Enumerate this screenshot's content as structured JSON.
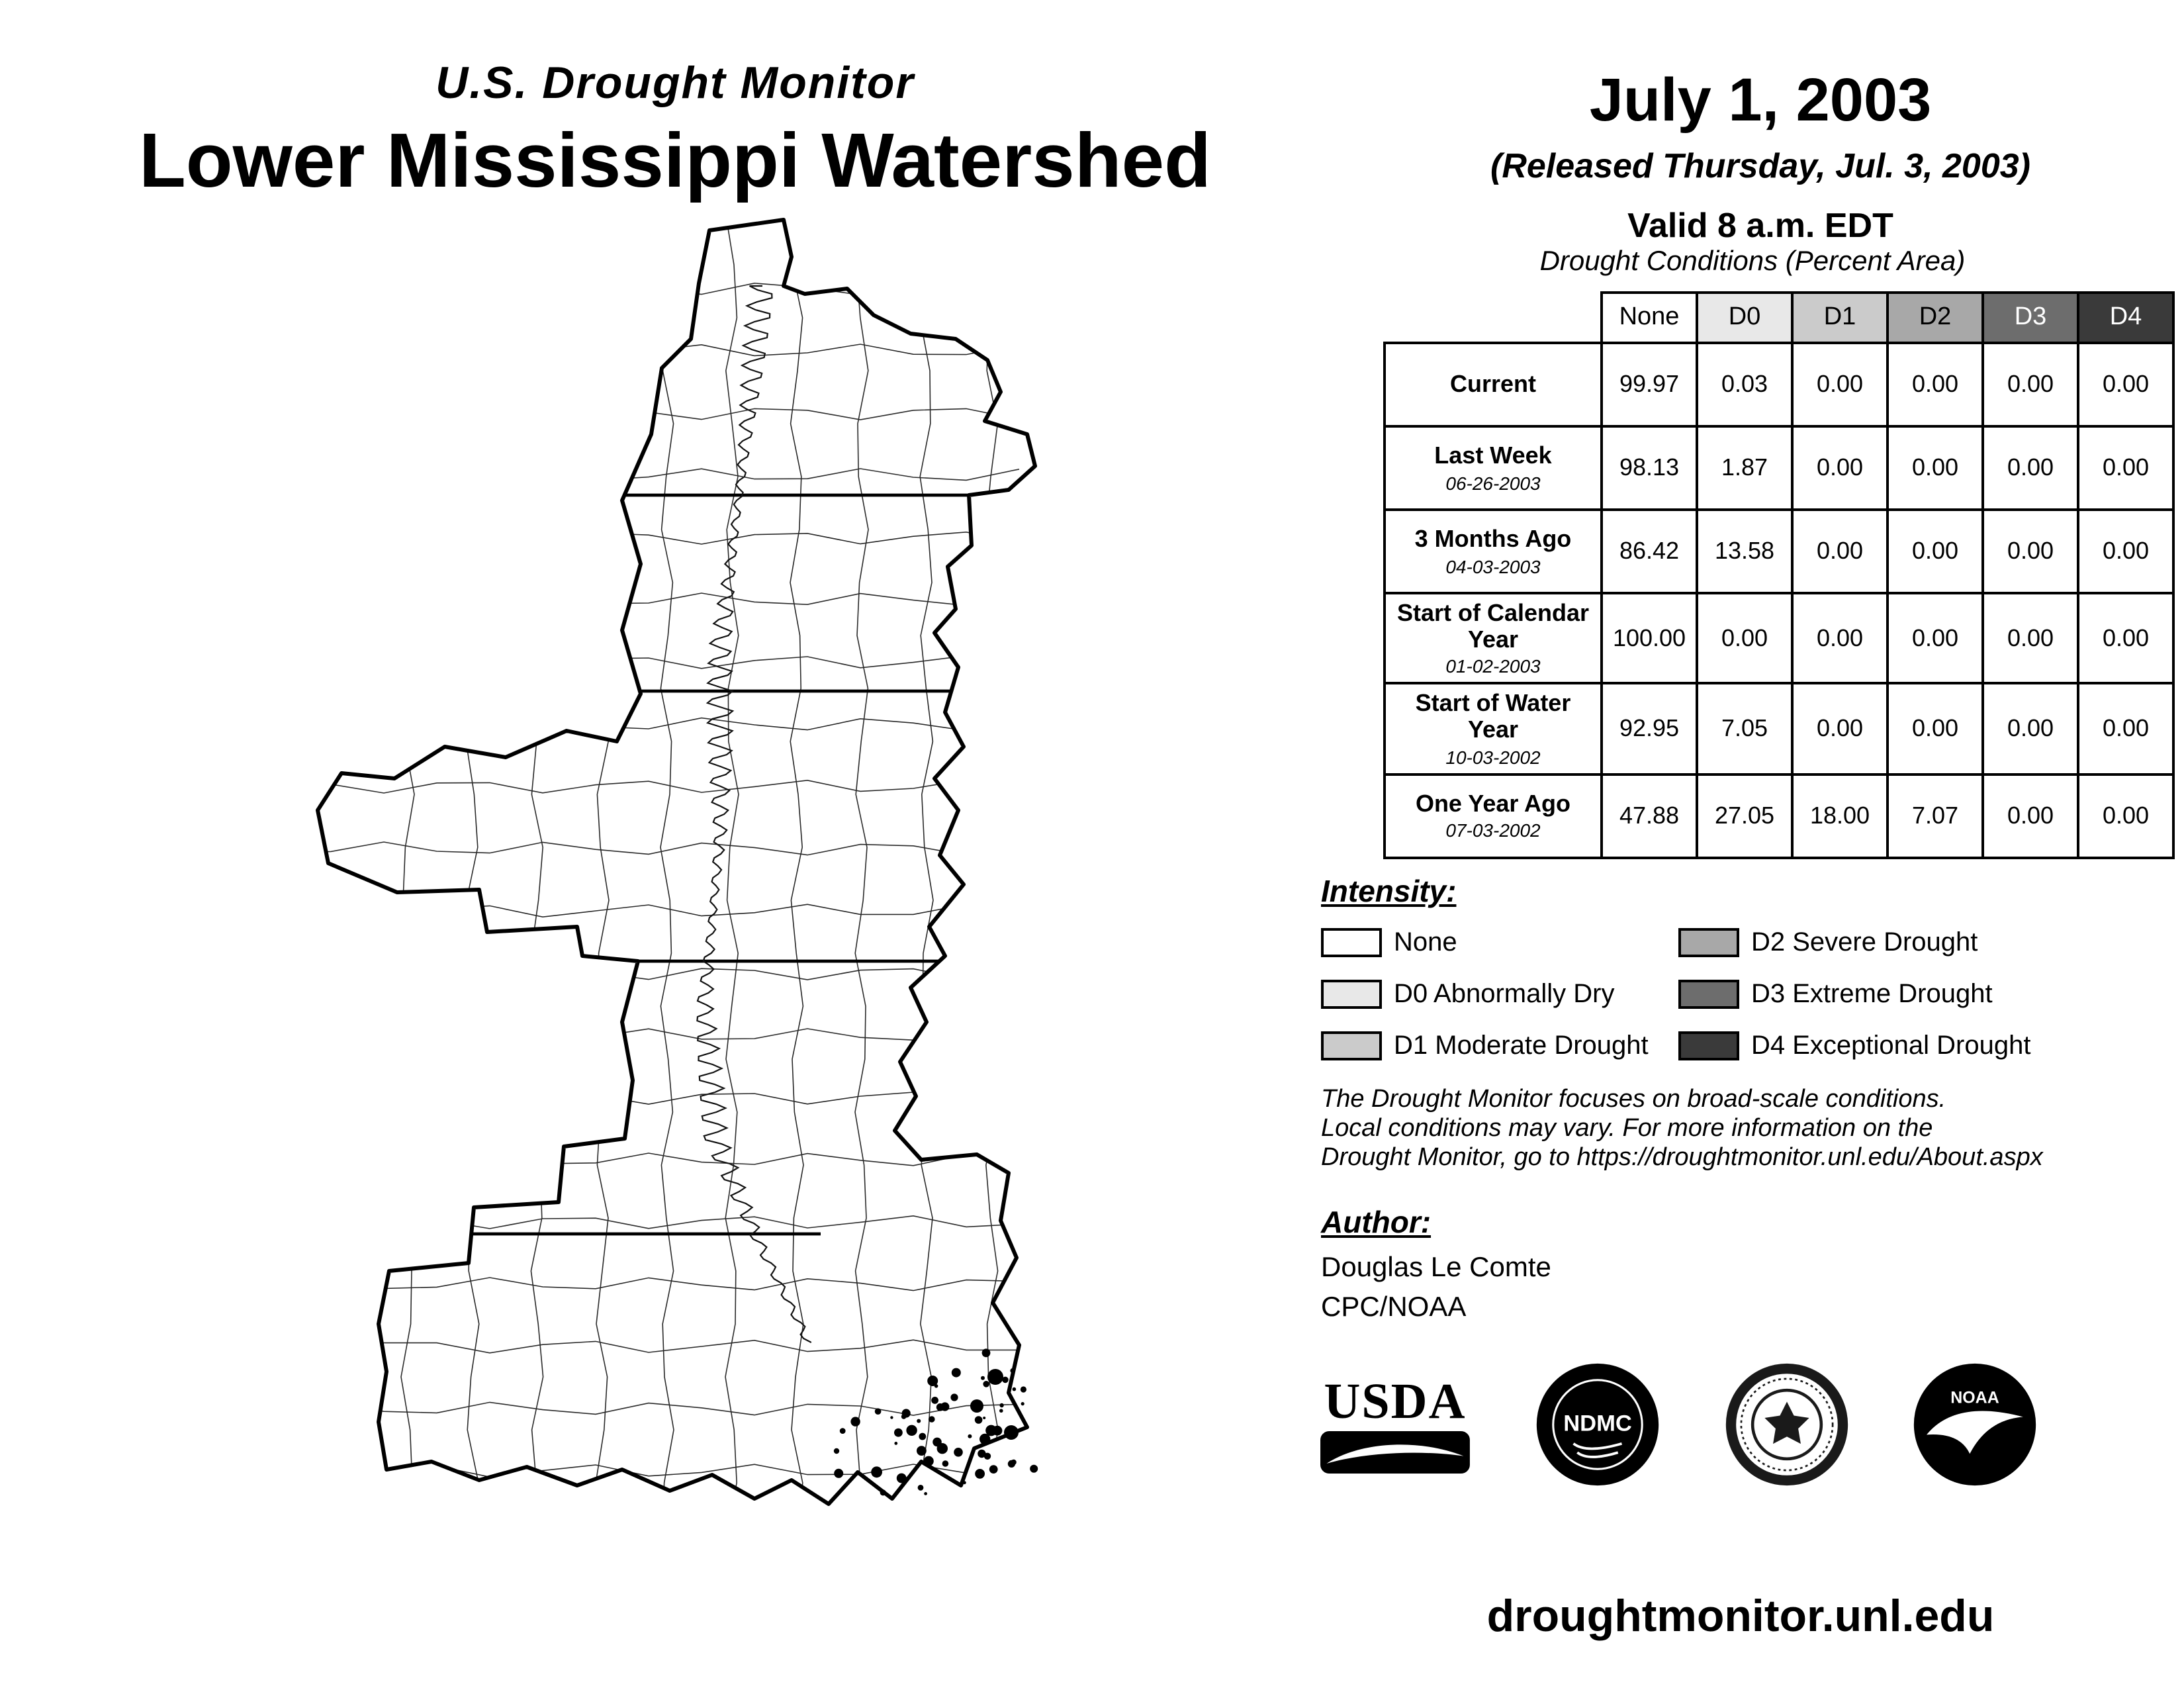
{
  "titles": {
    "kicker": "U.S. Drought Monitor",
    "main": "Lower Mississippi Watershed"
  },
  "release": {
    "date": "July 1, 2003",
    "released": "(Released Thursday, Jul. 3, 2003)",
    "valid": "Valid 8 a.m. EDT"
  },
  "table": {
    "caption": "Drought Conditions (Percent Area)",
    "columns": [
      "None",
      "D0",
      "D1",
      "D2",
      "D3",
      "D4"
    ],
    "rows": [
      {
        "label": "Current",
        "sub": "",
        "values": [
          "99.97",
          "0.03",
          "0.00",
          "0.00",
          "0.00",
          "0.00"
        ]
      },
      {
        "label": "Last Week",
        "sub": "06-26-2003",
        "values": [
          "98.13",
          "1.87",
          "0.00",
          "0.00",
          "0.00",
          "0.00"
        ]
      },
      {
        "label": "3 Months Ago",
        "sub": "04-03-2003",
        "values": [
          "86.42",
          "13.58",
          "0.00",
          "0.00",
          "0.00",
          "0.00"
        ]
      },
      {
        "label": "Start of Calendar Year",
        "sub": "01-02-2003",
        "values": [
          "100.00",
          "0.00",
          "0.00",
          "0.00",
          "0.00",
          "0.00"
        ]
      },
      {
        "label": "Start of Water Year",
        "sub": "10-03-2002",
        "values": [
          "92.95",
          "7.05",
          "0.00",
          "0.00",
          "0.00",
          "0.00"
        ]
      },
      {
        "label": "One Year Ago",
        "sub": "07-03-2002",
        "values": [
          "47.88",
          "27.05",
          "18.00",
          "7.07",
          "0.00",
          "0.00"
        ]
      }
    ]
  },
  "legend": {
    "heading": "Intensity:",
    "items": [
      {
        "label": "None",
        "color": "#ffffff"
      },
      {
        "label": "D0 Abnormally Dry",
        "color": "#e8e8e8"
      },
      {
        "label": "D1 Moderate Drought",
        "color": "#cbcbcb"
      },
      {
        "label": "D2 Severe Drought",
        "color": "#a8a8a8"
      },
      {
        "label": "D3 Extreme Drought",
        "color": "#6d6d6d"
      },
      {
        "label": "D4 Exceptional Drought",
        "color": "#3a3a3a"
      }
    ]
  },
  "notes": {
    "line1": "The Drought Monitor focuses on broad-scale conditions.",
    "line2": "Local conditions may vary. For more information on the",
    "line3": "Drought Monitor, go to https://droughtmonitor.unl.edu/About.aspx"
  },
  "author": {
    "heading": "Author:",
    "name": "Douglas Le Comte",
    "org": "CPC/NOAA"
  },
  "logos": {
    "usda": "USDA",
    "ndmc": "NDMC",
    "noaa": "NOAA"
  },
  "footer": {
    "url": "droughtmonitor.unl.edu"
  }
}
